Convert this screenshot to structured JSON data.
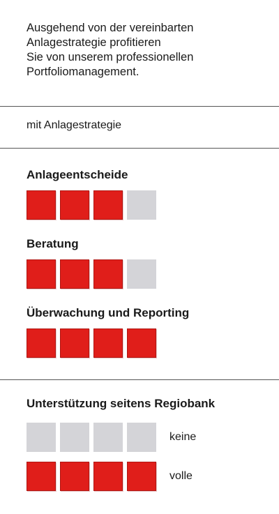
{
  "intro": {
    "lines": [
      "Ausgehend von der vereinbarten",
      "Anlagestrategie profitieren",
      "Sie von unserem professionellen",
      "Portfoliomanagement."
    ]
  },
  "strategy_label": "mit Anlagestrategie",
  "colors": {
    "active": "#e01e1a",
    "inactive": "#d4d4d8",
    "divider": "#555555"
  },
  "ratings": [
    {
      "label": "Anlageentscheide",
      "filled": 3,
      "total": 4
    },
    {
      "label": "Beratung",
      "filled": 3,
      "total": 4
    },
    {
      "label": "Überwachung und Reporting",
      "filled": 4,
      "total": 4
    }
  ],
  "support": {
    "heading": "Unterstützung seitens Regiobank",
    "legend": [
      {
        "label": "keine",
        "filled": 0,
        "total": 4
      },
      {
        "label": "volle",
        "filled": 4,
        "total": 4
      }
    ]
  }
}
